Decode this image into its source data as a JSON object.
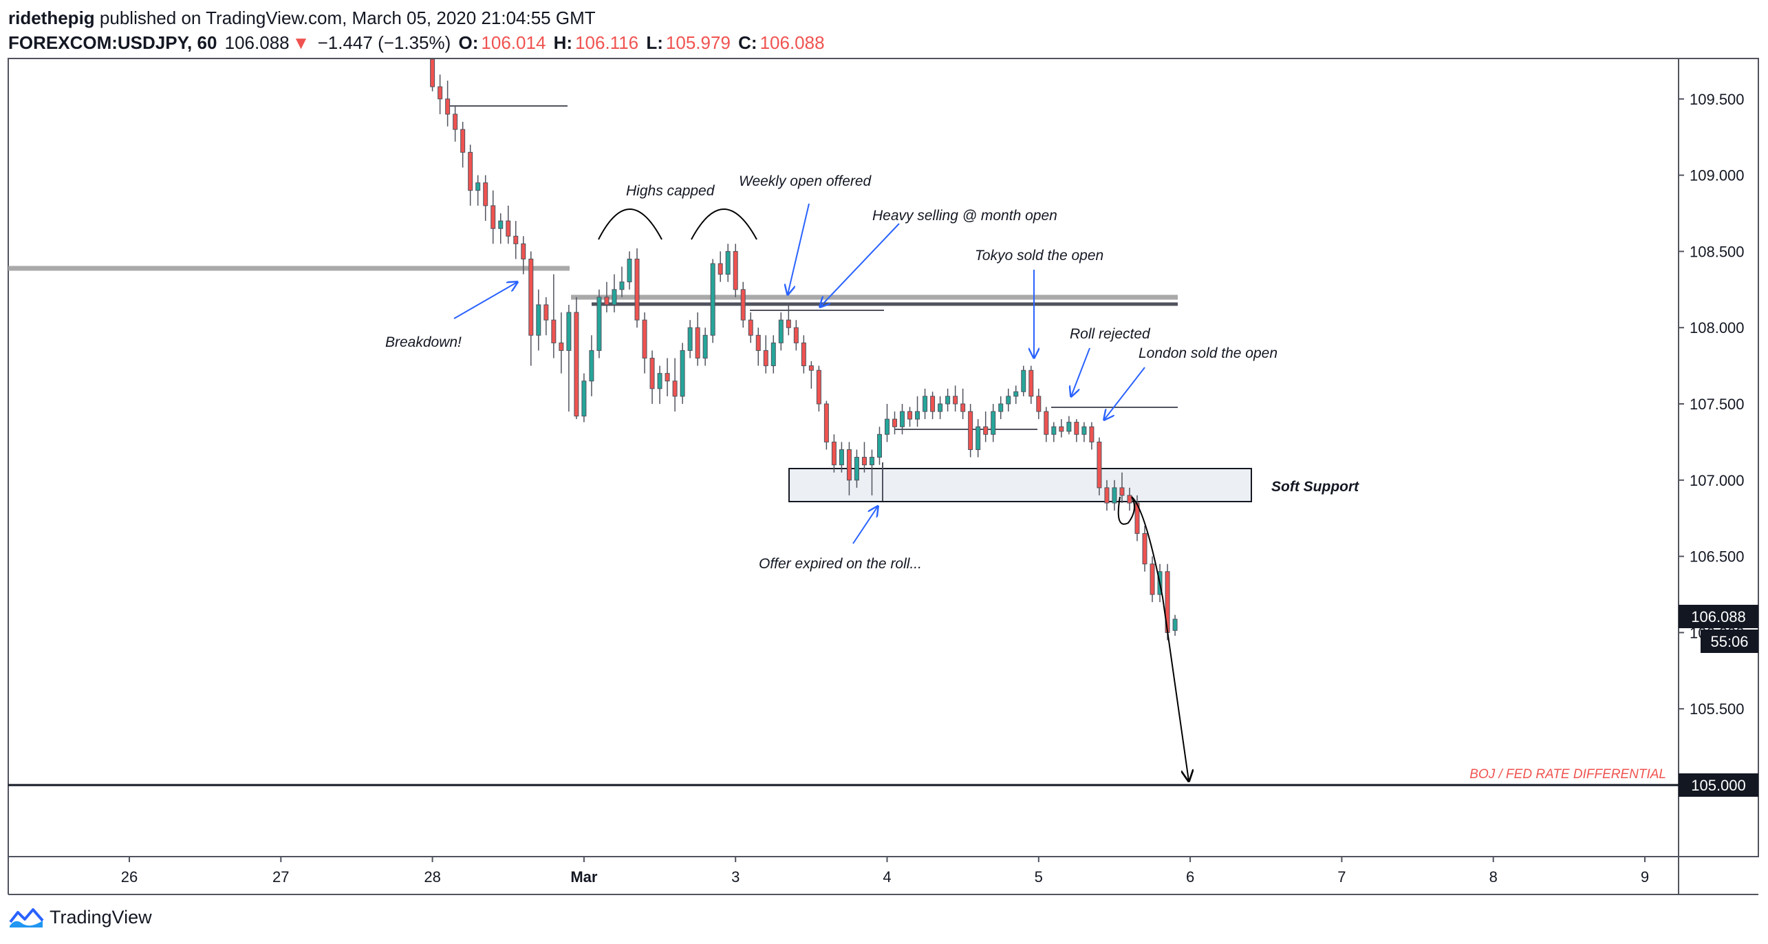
{
  "header": {
    "author": "ridethepig",
    "published": "published on TradingView.com, March 05, 2020 21:04:55 GMT",
    "symbol": "FOREXCOM:USDJPY, 60",
    "last": "106.088",
    "change": "−1.447 (−1.35%)",
    "o_label": "O:",
    "o_value": "106.014",
    "h_label": "H:",
    "h_value": "106.116",
    "l_label": "L:",
    "l_value": "105.979",
    "c_label": "C:",
    "c_value": "106.088"
  },
  "footer": {
    "brand": "TradingView"
  },
  "colors": {
    "up": "#26a69a",
    "down": "#ef5350",
    "support_fill": "#eceff3",
    "level_gray": "#a9a9a9",
    "annotation": "#2962ff"
  },
  "chart_data": {
    "type": "candlestick",
    "instrument": "FOREXCOM:USDJPY",
    "timeframe": "60",
    "ylim": [
      104.7,
      109.75
    ],
    "y_ticks": [
      "109.500",
      "109.000",
      "108.500",
      "108.000",
      "107.500",
      "107.000",
      "106.500",
      "106.000",
      "105.500",
      "105.000"
    ],
    "x_ticks": [
      {
        "label": "26",
        "pos": 0
      },
      {
        "label": "27",
        "pos": 1
      },
      {
        "label": "28",
        "pos": 2
      },
      {
        "label": "Mar",
        "pos": 3
      },
      {
        "label": "3",
        "pos": 4
      },
      {
        "label": "4",
        "pos": 5
      },
      {
        "label": "5",
        "pos": 6
      },
      {
        "label": "6",
        "pos": 7
      },
      {
        "label": "7",
        "pos": 8
      },
      {
        "label": "8",
        "pos": 9
      },
      {
        "label": "9",
        "pos": 10
      }
    ],
    "last_price_label": "106.088",
    "countdown_label": "55:06",
    "level_label": "105.000",
    "level_text": "BOJ / FED RATE DIFFERENTIAL",
    "zone_label": "Soft Support",
    "zone": [
      106.85,
      107.06
    ],
    "annotations": [
      "Highs capped",
      "Weekly open offered",
      "Heavy selling @ month open",
      "Tokyo sold the open",
      "Roll rejected",
      "London sold the open",
      "Breakdown!",
      "Offer expired on the roll..."
    ],
    "series": [
      {
        "x": 2.0,
        "o": 109.8,
        "h": 109.85,
        "l": 109.55,
        "c": 109.58
      },
      {
        "x": 2.05,
        "o": 109.58,
        "h": 109.66,
        "l": 109.4,
        "c": 109.5
      },
      {
        "x": 2.1,
        "o": 109.5,
        "h": 109.62,
        "l": 109.32,
        "c": 109.4
      },
      {
        "x": 2.15,
        "o": 109.4,
        "h": 109.45,
        "l": 109.22,
        "c": 109.3
      },
      {
        "x": 2.2,
        "o": 109.3,
        "h": 109.35,
        "l": 109.05,
        "c": 109.15
      },
      {
        "x": 2.25,
        "o": 109.15,
        "h": 109.2,
        "l": 108.8,
        "c": 108.9
      },
      {
        "x": 2.3,
        "o": 108.9,
        "h": 109.0,
        "l": 108.8,
        "c": 108.95
      },
      {
        "x": 2.35,
        "o": 108.95,
        "h": 109.0,
        "l": 108.7,
        "c": 108.8
      },
      {
        "x": 2.4,
        "o": 108.8,
        "h": 108.9,
        "l": 108.55,
        "c": 108.65
      },
      {
        "x": 2.45,
        "o": 108.65,
        "h": 108.75,
        "l": 108.55,
        "c": 108.7
      },
      {
        "x": 2.5,
        "o": 108.7,
        "h": 108.8,
        "l": 108.55,
        "c": 108.6
      },
      {
        "x": 2.55,
        "o": 108.6,
        "h": 108.7,
        "l": 108.45,
        "c": 108.55
      },
      {
        "x": 2.6,
        "o": 108.55,
        "h": 108.6,
        "l": 108.35,
        "c": 108.45
      },
      {
        "x": 2.65,
        "o": 108.45,
        "h": 108.5,
        "l": 107.75,
        "c": 107.95
      },
      {
        "x": 2.7,
        "o": 107.95,
        "h": 108.25,
        "l": 107.85,
        "c": 108.15
      },
      {
        "x": 2.75,
        "o": 108.15,
        "h": 108.2,
        "l": 107.95,
        "c": 108.05
      },
      {
        "x": 2.8,
        "o": 108.05,
        "h": 108.35,
        "l": 107.8,
        "c": 107.9
      },
      {
        "x": 2.85,
        "o": 107.9,
        "h": 108.1,
        "l": 107.7,
        "c": 107.85
      },
      {
        "x": 2.9,
        "o": 107.85,
        "h": 108.15,
        "l": 107.45,
        "c": 108.1
      },
      {
        "x": 2.95,
        "o": 108.1,
        "h": 108.2,
        "l": 107.4,
        "c": 107.42
      },
      {
        "x": 3.0,
        "o": 107.42,
        "h": 107.7,
        "l": 107.38,
        "c": 107.65
      },
      {
        "x": 3.05,
        "o": 107.65,
        "h": 107.95,
        "l": 107.55,
        "c": 107.85
      },
      {
        "x": 3.1,
        "o": 107.85,
        "h": 108.25,
        "l": 107.8,
        "c": 108.2
      },
      {
        "x": 3.15,
        "o": 108.2,
        "h": 108.3,
        "l": 108.1,
        "c": 108.15
      },
      {
        "x": 3.2,
        "o": 108.15,
        "h": 108.35,
        "l": 108.1,
        "c": 108.25
      },
      {
        "x": 3.25,
        "o": 108.25,
        "h": 108.4,
        "l": 108.2,
        "c": 108.3
      },
      {
        "x": 3.3,
        "o": 108.3,
        "h": 108.5,
        "l": 108.25,
        "c": 108.45
      },
      {
        "x": 3.35,
        "o": 108.45,
        "h": 108.52,
        "l": 108.0,
        "c": 108.05
      },
      {
        "x": 3.4,
        "o": 108.05,
        "h": 108.1,
        "l": 107.7,
        "c": 107.8
      },
      {
        "x": 3.45,
        "o": 107.8,
        "h": 107.85,
        "l": 107.5,
        "c": 107.6
      },
      {
        "x": 3.5,
        "o": 107.6,
        "h": 107.75,
        "l": 107.5,
        "c": 107.7
      },
      {
        "x": 3.55,
        "o": 107.7,
        "h": 107.8,
        "l": 107.55,
        "c": 107.65
      },
      {
        "x": 3.6,
        "o": 107.65,
        "h": 107.8,
        "l": 107.45,
        "c": 107.55
      },
      {
        "x": 3.65,
        "o": 107.55,
        "h": 107.9,
        "l": 107.5,
        "c": 107.85
      },
      {
        "x": 3.7,
        "o": 107.85,
        "h": 108.05,
        "l": 107.8,
        "c": 108.0
      },
      {
        "x": 3.75,
        "o": 108.0,
        "h": 108.1,
        "l": 107.75,
        "c": 107.8
      },
      {
        "x": 3.8,
        "o": 107.8,
        "h": 108.0,
        "l": 107.75,
        "c": 107.95
      },
      {
        "x": 3.85,
        "o": 107.95,
        "h": 108.45,
        "l": 107.9,
        "c": 108.42
      },
      {
        "x": 3.9,
        "o": 108.42,
        "h": 108.5,
        "l": 108.3,
        "c": 108.35
      },
      {
        "x": 3.95,
        "o": 108.35,
        "h": 108.55,
        "l": 108.3,
        "c": 108.5
      },
      {
        "x": 4.0,
        "o": 108.5,
        "h": 108.55,
        "l": 108.2,
        "c": 108.25
      },
      {
        "x": 4.05,
        "o": 108.25,
        "h": 108.3,
        "l": 108.0,
        "c": 108.05
      },
      {
        "x": 4.1,
        "o": 108.05,
        "h": 108.1,
        "l": 107.9,
        "c": 107.95
      },
      {
        "x": 4.15,
        "o": 107.95,
        "h": 108.0,
        "l": 107.75,
        "c": 107.85
      },
      {
        "x": 4.2,
        "o": 107.85,
        "h": 107.95,
        "l": 107.7,
        "c": 107.75
      },
      {
        "x": 4.25,
        "o": 107.75,
        "h": 107.95,
        "l": 107.7,
        "c": 107.9
      },
      {
        "x": 4.3,
        "o": 107.9,
        "h": 108.1,
        "l": 107.85,
        "c": 108.05
      },
      {
        "x": 4.35,
        "o": 108.05,
        "h": 108.15,
        "l": 107.95,
        "c": 108.0
      },
      {
        "x": 4.4,
        "o": 108.0,
        "h": 108.05,
        "l": 107.85,
        "c": 107.9
      },
      {
        "x": 4.45,
        "o": 107.9,
        "h": 107.95,
        "l": 107.7,
        "c": 107.75
      },
      {
        "x": 4.5,
        "o": 107.75,
        "h": 107.78,
        "l": 107.6,
        "c": 107.72
      },
      {
        "x": 4.55,
        "o": 107.72,
        "h": 107.75,
        "l": 107.45,
        "c": 107.5
      },
      {
        "x": 4.6,
        "o": 107.5,
        "h": 107.52,
        "l": 107.2,
        "c": 107.25
      },
      {
        "x": 4.65,
        "o": 107.25,
        "h": 107.3,
        "l": 107.05,
        "c": 107.1
      },
      {
        "x": 4.7,
        "o": 107.1,
        "h": 107.25,
        "l": 107.05,
        "c": 107.2
      },
      {
        "x": 4.75,
        "o": 107.2,
        "h": 107.25,
        "l": 106.9,
        "c": 107.0
      },
      {
        "x": 4.8,
        "o": 107.0,
        "h": 107.2,
        "l": 106.95,
        "c": 107.15
      },
      {
        "x": 4.85,
        "o": 107.15,
        "h": 107.25,
        "l": 107.05,
        "c": 107.1
      },
      {
        "x": 4.9,
        "o": 107.1,
        "h": 107.2,
        "l": 106.9,
        "c": 107.15
      },
      {
        "x": 4.95,
        "o": 107.15,
        "h": 107.35,
        "l": 107.1,
        "c": 107.3
      },
      {
        "x": 5.0,
        "o": 107.3,
        "h": 107.5,
        "l": 107.25,
        "c": 107.4
      },
      {
        "x": 5.05,
        "o": 107.4,
        "h": 107.45,
        "l": 107.3,
        "c": 107.35
      },
      {
        "x": 5.1,
        "o": 107.35,
        "h": 107.5,
        "l": 107.3,
        "c": 107.45
      },
      {
        "x": 5.15,
        "o": 107.45,
        "h": 107.48,
        "l": 107.35,
        "c": 107.4
      },
      {
        "x": 5.2,
        "o": 107.4,
        "h": 107.55,
        "l": 107.35,
        "c": 107.45
      },
      {
        "x": 5.25,
        "o": 107.45,
        "h": 107.6,
        "l": 107.4,
        "c": 107.55
      },
      {
        "x": 5.3,
        "o": 107.55,
        "h": 107.58,
        "l": 107.4,
        "c": 107.45
      },
      {
        "x": 5.35,
        "o": 107.45,
        "h": 107.55,
        "l": 107.4,
        "c": 107.5
      },
      {
        "x": 5.4,
        "o": 107.5,
        "h": 107.6,
        "l": 107.45,
        "c": 107.55
      },
      {
        "x": 5.45,
        "o": 107.55,
        "h": 107.62,
        "l": 107.45,
        "c": 107.5
      },
      {
        "x": 5.5,
        "o": 107.5,
        "h": 107.6,
        "l": 107.4,
        "c": 107.45
      },
      {
        "x": 5.55,
        "o": 107.45,
        "h": 107.5,
        "l": 107.15,
        "c": 107.2
      },
      {
        "x": 5.6,
        "o": 107.2,
        "h": 107.4,
        "l": 107.15,
        "c": 107.35
      },
      {
        "x": 5.65,
        "o": 107.35,
        "h": 107.45,
        "l": 107.25,
        "c": 107.3
      },
      {
        "x": 5.7,
        "o": 107.3,
        "h": 107.5,
        "l": 107.25,
        "c": 107.45
      },
      {
        "x": 5.75,
        "o": 107.45,
        "h": 107.55,
        "l": 107.4,
        "c": 107.5
      },
      {
        "x": 5.8,
        "o": 107.5,
        "h": 107.6,
        "l": 107.45,
        "c": 107.55
      },
      {
        "x": 5.85,
        "o": 107.55,
        "h": 107.62,
        "l": 107.5,
        "c": 107.58
      },
      {
        "x": 5.9,
        "o": 107.58,
        "h": 107.75,
        "l": 107.55,
        "c": 107.72
      },
      {
        "x": 5.95,
        "o": 107.72,
        "h": 107.75,
        "l": 107.5,
        "c": 107.55
      },
      {
        "x": 6.0,
        "o": 107.55,
        "h": 107.6,
        "l": 107.4,
        "c": 107.45
      },
      {
        "x": 6.05,
        "o": 107.45,
        "h": 107.48,
        "l": 107.25,
        "c": 107.3
      },
      {
        "x": 6.1,
        "o": 107.3,
        "h": 107.38,
        "l": 107.25,
        "c": 107.35
      },
      {
        "x": 6.15,
        "o": 107.35,
        "h": 107.4,
        "l": 107.28,
        "c": 107.32
      },
      {
        "x": 6.2,
        "o": 107.32,
        "h": 107.42,
        "l": 107.3,
        "c": 107.38
      },
      {
        "x": 6.25,
        "o": 107.38,
        "h": 107.4,
        "l": 107.25,
        "c": 107.3
      },
      {
        "x": 6.3,
        "o": 107.3,
        "h": 107.38,
        "l": 107.25,
        "c": 107.35
      },
      {
        "x": 6.35,
        "o": 107.35,
        "h": 107.38,
        "l": 107.2,
        "c": 107.25
      },
      {
        "x": 6.4,
        "o": 107.25,
        "h": 107.28,
        "l": 106.9,
        "c": 106.95
      },
      {
        "x": 6.45,
        "o": 106.95,
        "h": 107.0,
        "l": 106.8,
        "c": 106.85
      },
      {
        "x": 6.5,
        "o": 106.85,
        "h": 107.0,
        "l": 106.8,
        "c": 106.95
      },
      {
        "x": 6.55,
        "o": 106.95,
        "h": 107.05,
        "l": 106.85,
        "c": 106.9
      },
      {
        "x": 6.6,
        "o": 106.9,
        "h": 106.95,
        "l": 106.8,
        "c": 106.85
      },
      {
        "x": 6.65,
        "o": 106.85,
        "h": 106.9,
        "l": 106.6,
        "c": 106.65
      },
      {
        "x": 6.7,
        "o": 106.65,
        "h": 106.7,
        "l": 106.4,
        "c": 106.45
      },
      {
        "x": 6.75,
        "o": 106.45,
        "h": 106.5,
        "l": 106.2,
        "c": 106.25
      },
      {
        "x": 6.8,
        "o": 106.25,
        "h": 106.45,
        "l": 106.2,
        "c": 106.4
      },
      {
        "x": 6.85,
        "o": 106.4,
        "h": 106.45,
        "l": 105.95,
        "c": 106.0
      },
      {
        "x": 6.9,
        "o": 106.014,
        "h": 106.116,
        "l": 105.979,
        "c": 106.088
      }
    ]
  }
}
